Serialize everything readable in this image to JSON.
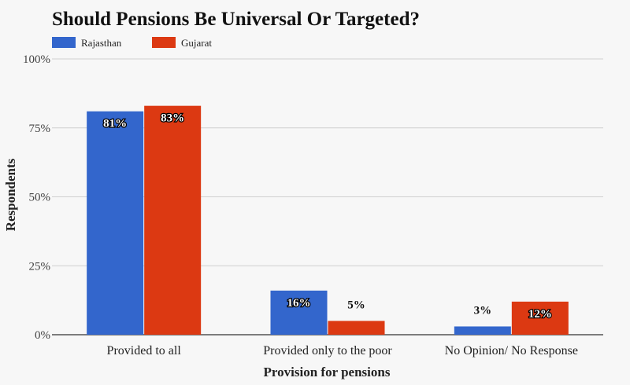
{
  "chart_data": {
    "type": "bar",
    "title": "Should Pensions Be Universal Or Targeted?",
    "xlabel": "Provision for pensions",
    "ylabel": "Respondents",
    "categories": [
      "Provided to all",
      "Provided only to the poor",
      "No Opinion/ No Response"
    ],
    "series": [
      {
        "name": "Rajasthan",
        "values": [
          81,
          16,
          3
        ],
        "color": "#3366cc",
        "labels": [
          "81%",
          "16%",
          "3%"
        ]
      },
      {
        "name": "Gujarat",
        "values": [
          83,
          5,
          12
        ],
        "color": "#dc3912",
        "labels": [
          "83%",
          "5%",
          "12%"
        ]
      }
    ],
    "ylim": [
      0,
      100
    ],
    "yticks": [
      0,
      25,
      50,
      75,
      100
    ],
    "ytick_labels": [
      "0%",
      "25%",
      "50%",
      "75%",
      "100%"
    ],
    "grid": true,
    "legend": "top-left"
  }
}
